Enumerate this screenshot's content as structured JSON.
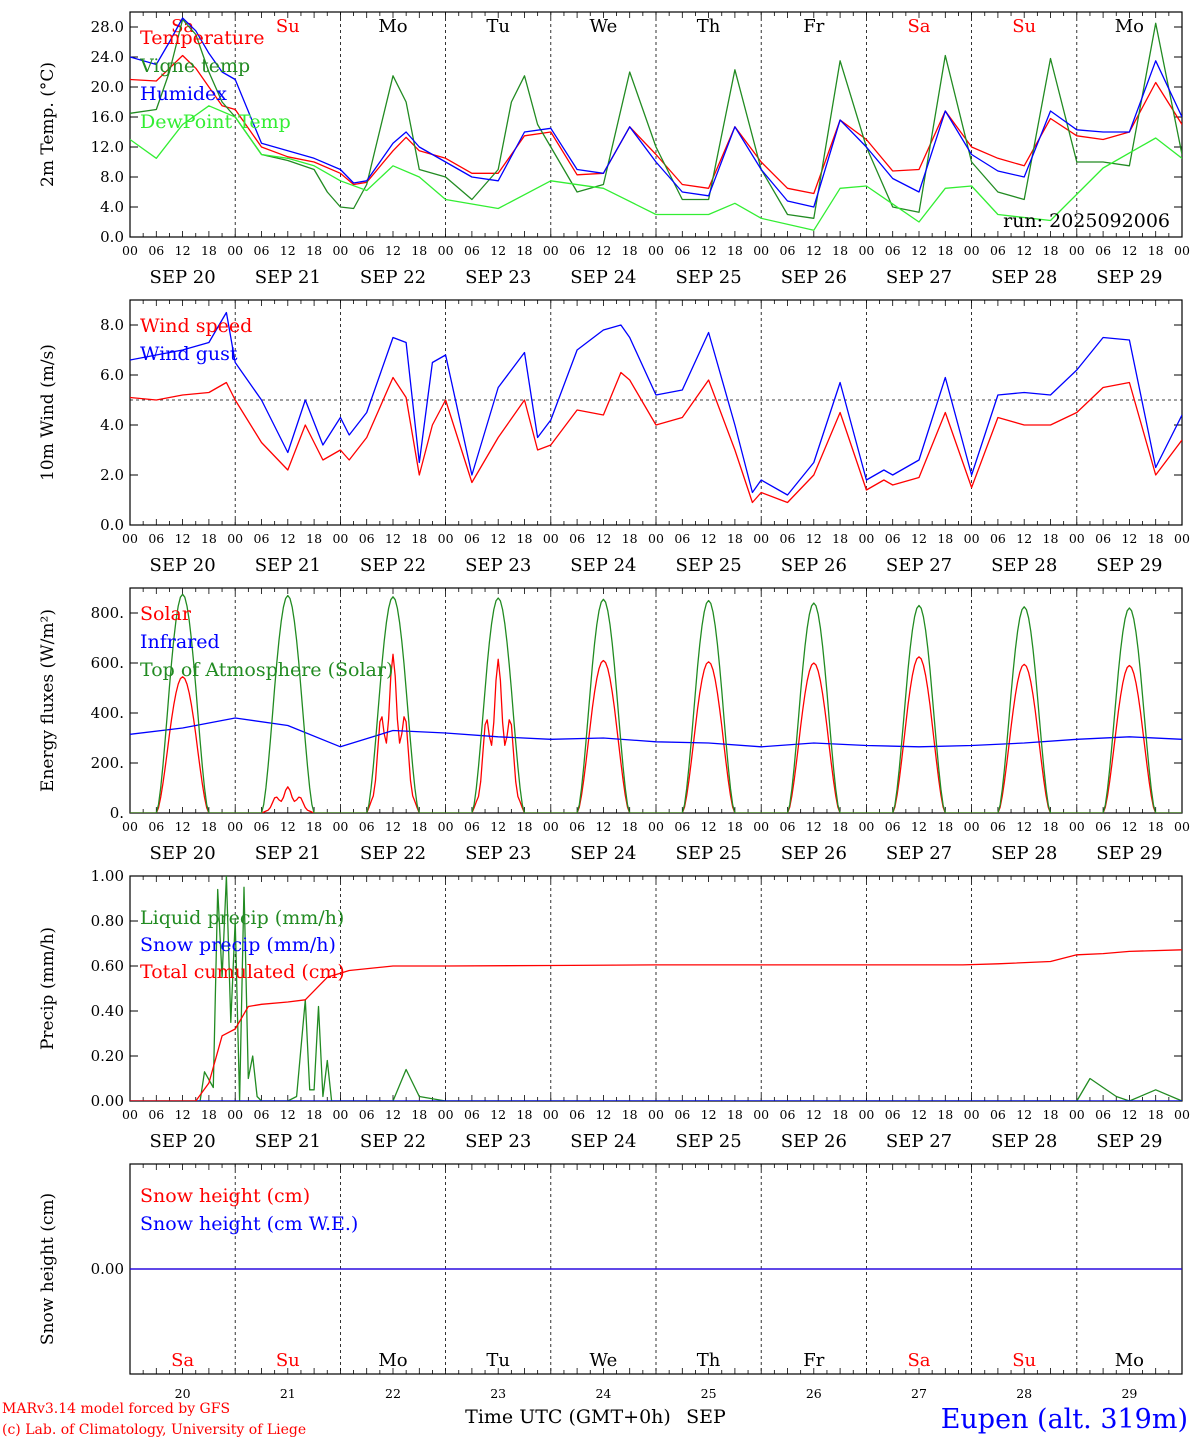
{
  "meta": {
    "footer_left_1": "MARv3.14 model forced by GFS",
    "footer_left_2": "(c) Lab. of Climatology, University of Liege",
    "x_title": "Time UTC (GMT+0h)",
    "x_title_month": "SEP",
    "station": "Eupen (alt. 319m)",
    "run_label": "run: 2025092006",
    "weekday_labels": [
      "Sa",
      "Su",
      "Mo",
      "Tu",
      "We",
      "Th",
      "Fr",
      "Sa",
      "Su",
      "Mo"
    ],
    "weekend_flags": [
      true,
      true,
      false,
      false,
      false,
      false,
      false,
      true,
      true,
      false
    ],
    "date_labels": [
      "SEP 20",
      "SEP 21",
      "SEP 22",
      "SEP 23",
      "SEP 24",
      "SEP 25",
      "SEP 26",
      "SEP 27",
      "SEP 28",
      "SEP 29"
    ],
    "day_numbers": [
      "20",
      "21",
      "22",
      "23",
      "24",
      "25",
      "26",
      "27",
      "28",
      "29"
    ],
    "hour_ticks": [
      "00",
      "06",
      "12",
      "18"
    ],
    "colors": {
      "red": "#ff0000",
      "darkgreen": "#228b22",
      "blue": "#0000ff",
      "lightgreen": "#33ee33",
      "weekend": "#ff0000",
      "weekday": "#000000"
    }
  },
  "chart_data": [
    {
      "type": "line",
      "panel": "temperature",
      "ylabel": "2m Temp. (°C)",
      "ylim": [
        0,
        30
      ],
      "yticks": [
        "0.0",
        "4.0",
        "8.0",
        "12.0",
        "16.0",
        "20.0",
        "24.0",
        "28.0"
      ],
      "x_unit": "hours since 2025-09-20 00 UTC",
      "series": [
        {
          "name": "Temperature",
          "color": "#ff0000",
          "x": [
            0,
            6,
            9,
            12,
            15,
            18,
            21,
            24,
            30,
            36,
            42,
            48,
            51,
            54,
            60,
            63,
            66,
            72,
            78,
            84,
            90,
            96,
            102,
            108,
            114,
            120,
            126,
            132,
            138,
            144,
            150,
            156,
            162,
            168,
            174,
            180,
            186,
            192,
            198,
            204,
            210,
            216,
            222,
            228,
            234,
            240
          ],
          "y": [
            21,
            20.8,
            22.5,
            24.2,
            22.5,
            20,
            17.5,
            17,
            12,
            10.7,
            10,
            8.5,
            7,
            7.3,
            11.5,
            13.3,
            11.5,
            10.5,
            8.5,
            8.5,
            13.5,
            14,
            8.3,
            8.5,
            14.7,
            11,
            7,
            6.5,
            14.7,
            10,
            6.5,
            5.8,
            15.6,
            13,
            8.8,
            9,
            16.8,
            12,
            10.5,
            9.5,
            15.8,
            13.5,
            13,
            14,
            20.6,
            15
          ]
        },
        {
          "name": "Vigne temp",
          "color": "#228b22",
          "x": [
            0,
            6,
            9,
            12,
            15,
            18,
            21,
            24,
            30,
            36,
            42,
            45,
            48,
            51,
            54,
            60,
            63,
            66,
            72,
            78,
            84,
            87,
            90,
            93,
            96,
            102,
            108,
            114,
            120,
            126,
            132,
            138,
            144,
            150,
            156,
            162,
            168,
            174,
            180,
            186,
            192,
            198,
            204,
            210,
            216,
            222,
            228,
            234,
            240
          ],
          "y": [
            16.5,
            17,
            22,
            29,
            27,
            22,
            18,
            16,
            11,
            10.2,
            9,
            6,
            4,
            3.8,
            7,
            21.5,
            18,
            9,
            8,
            5,
            9,
            18,
            21.5,
            15,
            12,
            6,
            7,
            22,
            12,
            5,
            5,
            22.3,
            9,
            3,
            2.5,
            23.5,
            12,
            4,
            3.3,
            24.2,
            10,
            6,
            5,
            23.8,
            10,
            10,
            9.5,
            28.5,
            11
          ]
        },
        {
          "name": "Humidex",
          "color": "#0000ff",
          "x": [
            0,
            6,
            9,
            12,
            15,
            18,
            21,
            24,
            30,
            36,
            42,
            48,
            51,
            54,
            60,
            63,
            66,
            72,
            78,
            84,
            90,
            96,
            102,
            108,
            114,
            120,
            126,
            132,
            138,
            144,
            150,
            156,
            162,
            168,
            174,
            180,
            186,
            192,
            198,
            204,
            210,
            216,
            222,
            228,
            234,
            240
          ],
          "y": [
            24,
            23,
            26,
            29.2,
            27.5,
            24.5,
            22,
            21,
            12.5,
            11.5,
            10.5,
            9,
            7.2,
            7.5,
            12.5,
            14,
            12,
            10,
            8,
            7.5,
            14,
            14.5,
            9,
            8.5,
            14.7,
            10,
            6,
            5.5,
            14.7,
            9,
            4.8,
            4,
            15.6,
            12,
            7.8,
            6,
            16.8,
            11,
            8.8,
            8,
            16.8,
            14.3,
            14,
            14,
            23.5,
            16
          ]
        },
        {
          "name": "DewPoint Temp",
          "color": "#33ee33",
          "x": [
            0,
            6,
            12,
            18,
            24,
            30,
            36,
            42,
            48,
            54,
            60,
            66,
            72,
            84,
            96,
            108,
            120,
            132,
            138,
            144,
            156,
            162,
            168,
            180,
            186,
            192,
            198,
            210,
            222,
            234,
            240
          ],
          "y": [
            13,
            10.5,
            15,
            17.5,
            16,
            11,
            10.5,
            9.5,
            7.5,
            6.2,
            9.5,
            8,
            5,
            3.8,
            7.5,
            6.5,
            3,
            3,
            4.5,
            2.5,
            0.9,
            6.5,
            6.8,
            2,
            6.5,
            6.8,
            3,
            2.2,
            9.2,
            13.2,
            10.5
          ]
        }
      ]
    },
    {
      "type": "line",
      "panel": "wind",
      "ylabel": "10m Wind (m/s)",
      "ylim": [
        0,
        9
      ],
      "reference_line": 5,
      "yticks": [
        "0.0",
        "2.0",
        "4.0",
        "6.0",
        "8.0"
      ],
      "x_unit": "hours since 2025-09-20 00 UTC",
      "series": [
        {
          "name": "Wind speed",
          "color": "#ff0000",
          "x": [
            0,
            6,
            12,
            18,
            22,
            24,
            30,
            36,
            40,
            44,
            48,
            50,
            54,
            60,
            63,
            66,
            69,
            72,
            78,
            84,
            90,
            93,
            96,
            102,
            108,
            112,
            114,
            120,
            126,
            132,
            138,
            142,
            144,
            150,
            156,
            162,
            168,
            172,
            174,
            180,
            186,
            192,
            198,
            204,
            210,
            216,
            222,
            228,
            234,
            240
          ],
          "y": [
            5.1,
            5,
            5.2,
            5.3,
            5.7,
            5,
            3.3,
            2.2,
            4,
            2.6,
            3,
            2.6,
            3.5,
            5.9,
            5.1,
            2,
            4,
            5,
            1.7,
            3.5,
            5,
            3,
            3.2,
            4.6,
            4.4,
            6.1,
            5.8,
            4,
            4.3,
            5.8,
            3,
            0.9,
            1.3,
            0.9,
            2,
            4.5,
            1.4,
            1.8,
            1.6,
            1.9,
            4.5,
            1.5,
            4.3,
            4,
            4,
            4.5,
            5.5,
            5.7,
            2,
            3.4
          ]
        },
        {
          "name": "Wind gust",
          "color": "#0000ff",
          "x": [
            0,
            6,
            12,
            18,
            22,
            24,
            30,
            36,
            40,
            44,
            48,
            50,
            54,
            60,
            63,
            66,
            69,
            72,
            78,
            84,
            90,
            93,
            96,
            102,
            108,
            112,
            114,
            120,
            126,
            132,
            138,
            142,
            144,
            150,
            156,
            162,
            168,
            172,
            174,
            180,
            186,
            192,
            198,
            204,
            210,
            216,
            222,
            228,
            234,
            240
          ],
          "y": [
            6.6,
            6.8,
            7,
            7.3,
            8.5,
            6.5,
            5,
            2.9,
            5,
            3.2,
            4.3,
            3.6,
            4.5,
            7.5,
            7.3,
            2.5,
            6.5,
            6.8,
            2,
            5.5,
            6.9,
            3.5,
            4.2,
            7,
            7.8,
            8,
            7.5,
            5.2,
            5.4,
            7.7,
            4,
            1.3,
            1.8,
            1.2,
            2.5,
            5.7,
            1.8,
            2.2,
            2,
            2.6,
            5.9,
            2,
            5.2,
            5.3,
            5.2,
            6.2,
            7.5,
            7.4,
            2.3,
            4.4
          ]
        }
      ]
    },
    {
      "type": "line",
      "panel": "energy",
      "ylabel": "Energy fluxes (W/m²)",
      "ylim": [
        0,
        900
      ],
      "yticks": [
        "0.",
        "200.",
        "400.",
        "600.",
        "800."
      ],
      "x_unit": "hours since 2025-09-20 00 UTC",
      "series": [
        {
          "name": "Solar",
          "color": "#ff0000",
          "day_peaks": [
            545,
            105,
            635,
            615,
            610,
            605,
            600,
            625,
            595,
            590
          ]
        },
        {
          "name": "Infrared",
          "color": "#0000ff",
          "x": [
            0,
            12,
            24,
            36,
            48,
            60,
            72,
            84,
            96,
            108,
            120,
            132,
            144,
            156,
            168,
            180,
            192,
            204,
            216,
            228,
            240
          ],
          "y": [
            315,
            340,
            380,
            350,
            265,
            330,
            320,
            305,
            295,
            300,
            285,
            280,
            265,
            280,
            270,
            265,
            270,
            280,
            295,
            305,
            295
          ]
        },
        {
          "name": "Top of Atmosphere (Solar)",
          "color": "#228b22",
          "day_peaks": [
            875,
            870,
            865,
            860,
            855,
            850,
            840,
            830,
            825,
            820
          ]
        }
      ]
    },
    {
      "type": "line",
      "panel": "precip",
      "ylabel": "Precip (mm/h)",
      "ylim": [
        0,
        1.0
      ],
      "yticks": [
        "0.00",
        "0.20",
        "0.40",
        "0.60",
        "0.80",
        "1.00"
      ],
      "x_unit": "hours since 2025-09-20 00 UTC",
      "series": [
        {
          "name": "Liquid precip (mm/h)",
          "color": "#228b22",
          "x": [
            0,
            16,
            17,
            19,
            20,
            21,
            22,
            23,
            24,
            25,
            26,
            27,
            28,
            29,
            30,
            36,
            38,
            40,
            41,
            42,
            43,
            44,
            45,
            46,
            48,
            60,
            63,
            66,
            72,
            96,
            216,
            219,
            222,
            225,
            228,
            234,
            240
          ],
          "y": [
            0,
            0,
            0.13,
            0.06,
            0.94,
            0.55,
            1.0,
            0.35,
            0.8,
            0,
            0.95,
            0.1,
            0.2,
            0.02,
            0,
            0,
            0.02,
            0.45,
            0.05,
            0.05,
            0.42,
            0.02,
            0.18,
            0,
            0,
            0,
            0.14,
            0.02,
            0,
            0,
            0,
            0.1,
            0.06,
            0.02,
            0,
            0.05,
            0
          ]
        },
        {
          "name": "Snow precip (mm/h)",
          "color": "#0000ff",
          "x": [
            0,
            240
          ],
          "y": [
            0,
            0
          ]
        },
        {
          "name": "Total cumulated (cm)",
          "color": "#ff0000",
          "x": [
            0,
            15,
            18,
            21,
            24,
            27,
            30,
            36,
            40,
            45,
            50,
            60,
            72,
            96,
            120,
            144,
            168,
            190,
            198,
            210,
            216,
            222,
            228,
            240
          ],
          "y": [
            0,
            0,
            0.08,
            0.29,
            0.32,
            0.42,
            0.43,
            0.44,
            0.45,
            0.55,
            0.58,
            0.6,
            0.6,
            0.602,
            0.605,
            0.605,
            0.605,
            0.605,
            0.61,
            0.62,
            0.65,
            0.655,
            0.665,
            0.672
          ]
        }
      ]
    },
    {
      "type": "line",
      "panel": "snow",
      "ylabel": "Snow height (cm)",
      "yticks": [
        "0.00"
      ],
      "x_unit": "hours since 2025-09-20 00 UTC",
      "series": [
        {
          "name": "Snow height (cm)",
          "color": "#ff0000",
          "x": [
            0,
            240
          ],
          "y": [
            0,
            0
          ]
        },
        {
          "name": "Snow height (cm W.E.)",
          "color": "#0000ff",
          "x": [
            0,
            240
          ],
          "y": [
            0,
            0
          ]
        }
      ]
    }
  ]
}
